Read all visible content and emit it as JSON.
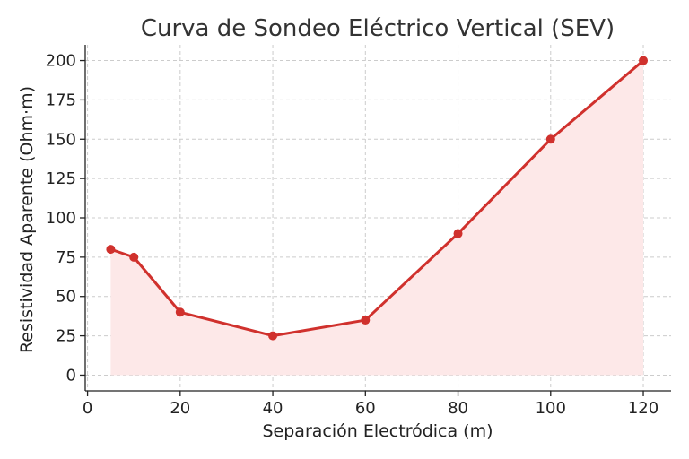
{
  "chart_data": {
    "type": "line",
    "title": "Curva de Sondeo Eléctrico Vertical (SEV)",
    "xlabel": "Separación Electródica (m)",
    "ylabel": "Resistividad Aparente (Ohm·m)",
    "xlim": [
      -0.5,
      126
    ],
    "ylim": [
      -10,
      210
    ],
    "x_ticks": [
      0,
      20,
      40,
      60,
      80,
      100,
      120
    ],
    "y_ticks": [
      0,
      25,
      50,
      75,
      100,
      125,
      150,
      175,
      200
    ],
    "grid": true,
    "fill_under": true,
    "colors": {
      "line": "#d0312d",
      "fill": "#fde8e8",
      "grid": "#cccccc"
    },
    "series": [
      {
        "x": [
          5,
          10,
          20,
          40,
          60,
          80,
          100,
          120
        ],
        "y": [
          80,
          75,
          40,
          25,
          35,
          90,
          150,
          200
        ]
      }
    ]
  }
}
